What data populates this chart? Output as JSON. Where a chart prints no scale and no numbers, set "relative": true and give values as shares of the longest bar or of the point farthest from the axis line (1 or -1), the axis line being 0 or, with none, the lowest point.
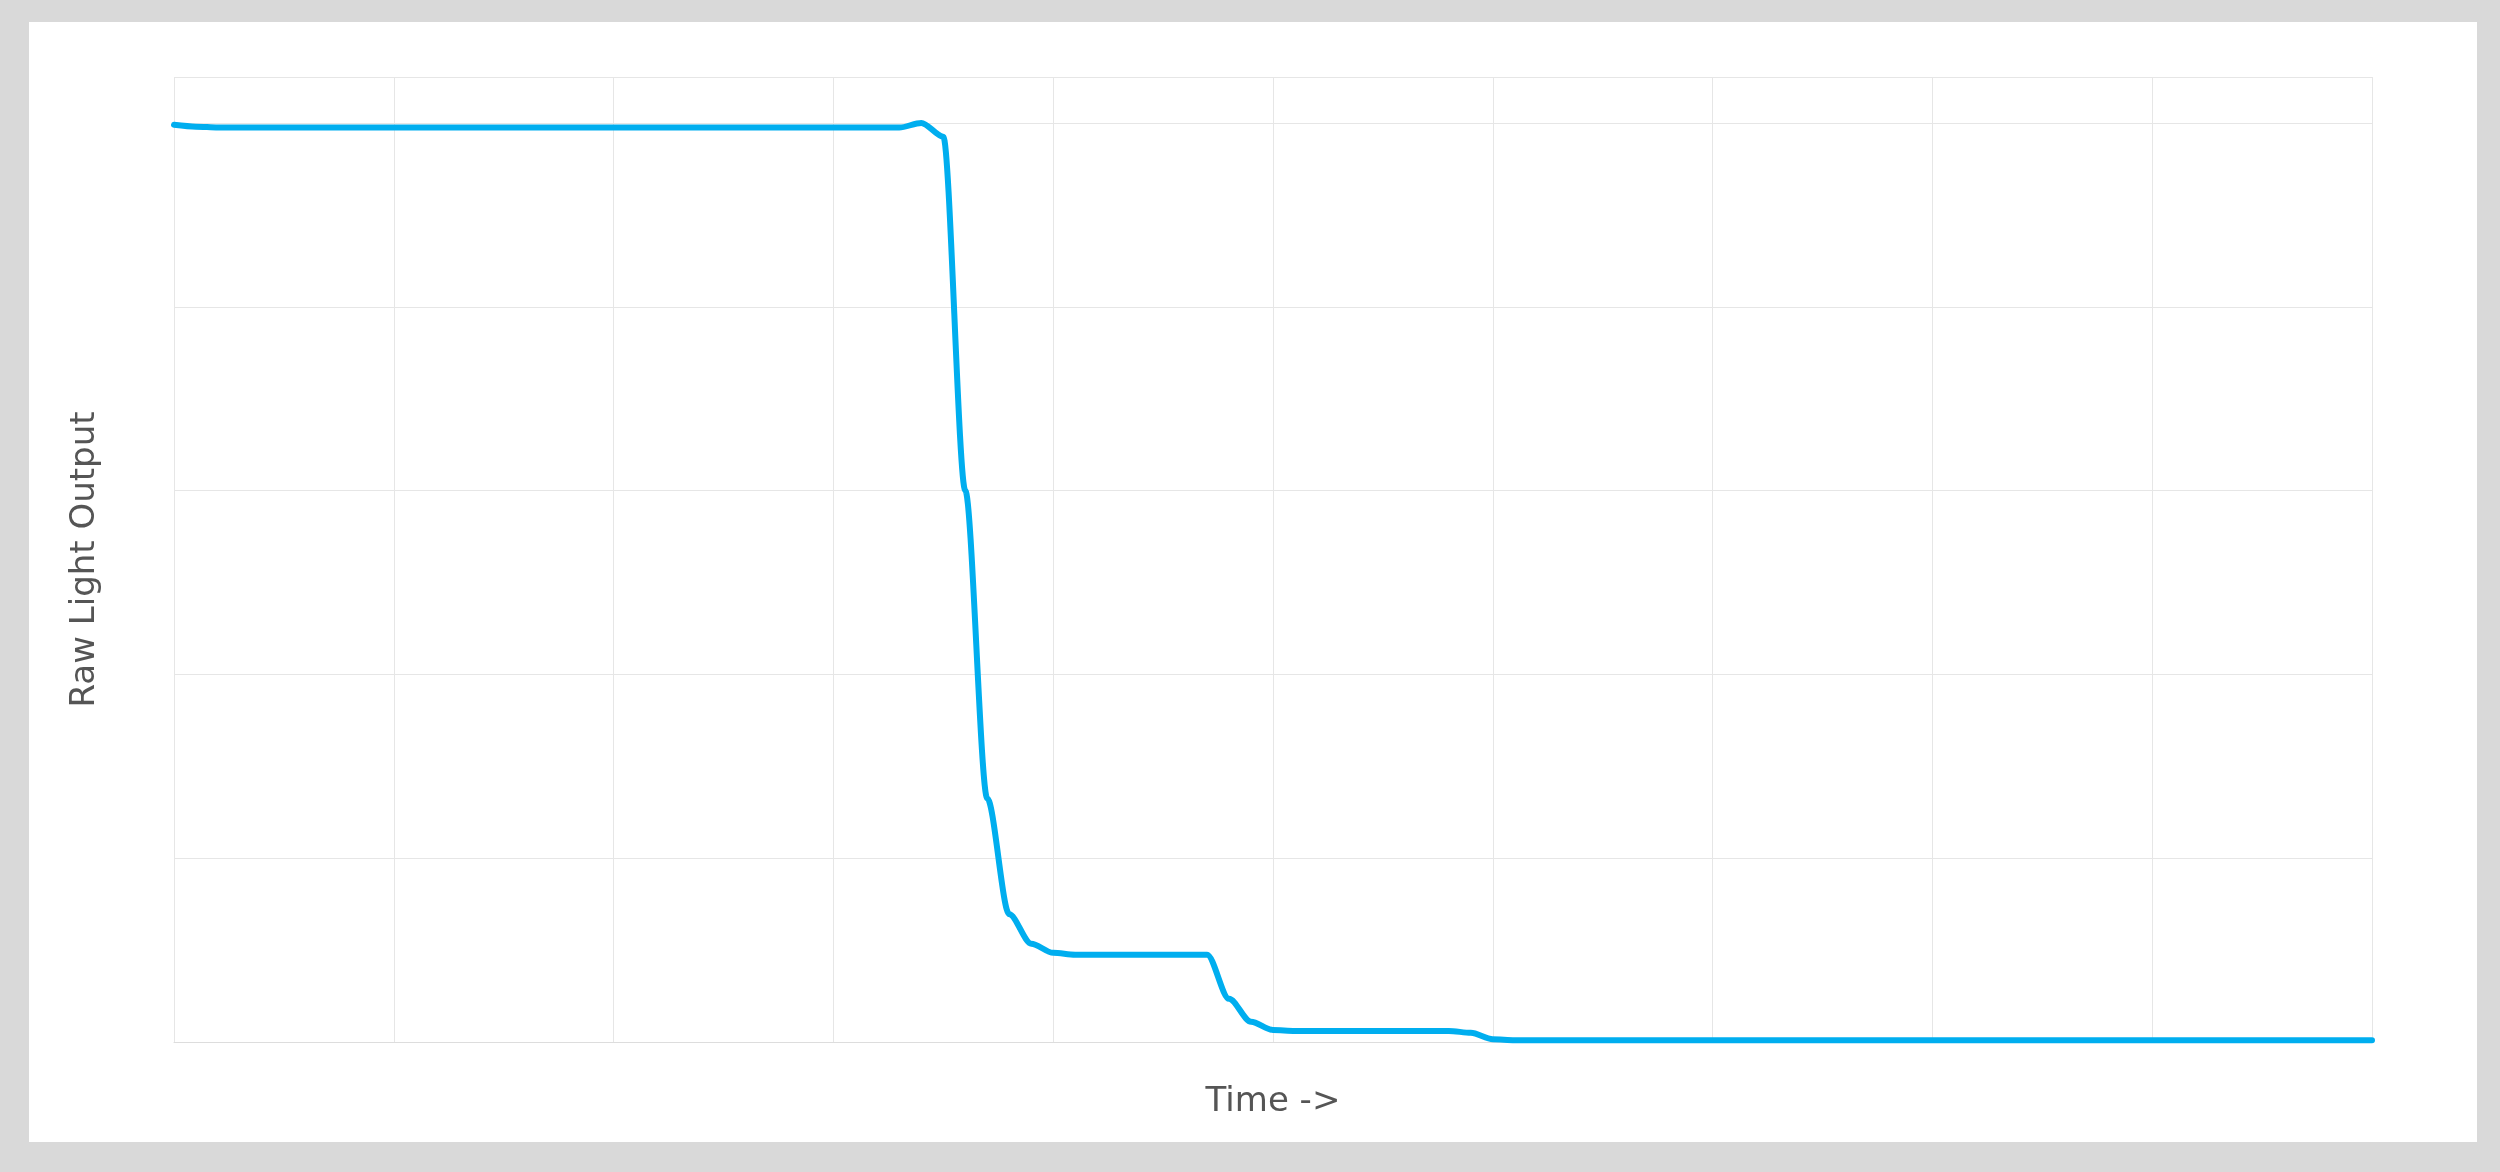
{
  "chart_data": {
    "type": "line",
    "relative": true,
    "xlabel": "Time ->",
    "ylabel": "Raw Light Output",
    "grid": true,
    "marker": "none",
    "line_style": "solid",
    "categories": [
      null,
      null,
      null,
      null,
      null,
      null,
      null,
      null,
      null,
      null,
      null,
      null,
      null,
      null,
      null,
      null,
      null,
      null,
      null,
      null,
      null,
      null,
      null,
      null,
      null,
      null,
      null,
      null,
      null,
      null,
      null,
      null,
      null,
      null,
      null,
      null,
      null,
      null,
      null,
      null,
      null,
      null,
      null,
      null,
      null,
      null,
      null,
      null,
      null,
      null,
      null,
      null,
      null,
      null,
      null,
      null,
      null,
      null,
      null,
      null,
      null,
      null,
      null,
      null,
      null,
      null,
      null,
      null,
      null,
      null,
      null,
      null,
      null,
      null,
      null,
      null,
      null,
      null,
      null,
      null,
      null,
      null,
      null,
      null,
      null,
      null,
      null,
      null,
      null,
      null,
      null,
      null,
      null,
      null,
      null,
      null,
      null,
      null,
      null,
      null,
      null
    ],
    "series": [
      {
        "color": "#00aeef",
        "values": [
          0.998,
          0.996,
          0.995,
          0.995,
          0.995,
          0.995,
          0.995,
          0.995,
          0.995,
          0.995,
          0.995,
          0.995,
          0.995,
          0.995,
          0.995,
          0.995,
          0.995,
          0.995,
          0.995,
          0.995,
          0.995,
          0.995,
          0.995,
          0.995,
          0.995,
          0.995,
          0.995,
          0.995,
          0.995,
          0.995,
          0.995,
          0.995,
          0.995,
          0.995,
          1,
          0.985,
          0.6,
          0.265,
          0.139,
          0.107,
          0.097,
          0.095,
          0.095,
          0.095,
          0.095,
          0.095,
          0.095,
          0.095,
          0.047,
          0.022,
          0.013,
          0.012,
          0.012,
          0.012,
          0.012,
          0.012,
          0.012,
          0.012,
          0.012,
          0.01,
          0.003,
          0.002,
          0.002,
          0.002,
          0.002,
          0.002,
          0.002,
          0.002,
          0.002,
          0.002,
          0.002,
          0.002,
          0.002,
          0.002,
          0.002,
          0.002,
          0.002,
          0.002,
          0.002,
          0.002,
          0.002,
          0.002,
          0.002,
          0.002,
          0.002,
          0.002,
          0.002,
          0.002,
          0.002,
          0.002,
          0.002,
          0.002,
          0.002,
          0.002,
          0.002,
          0.002,
          0.002,
          0.002,
          0.002,
          0.002,
          0.002
        ]
      }
    ]
  }
}
